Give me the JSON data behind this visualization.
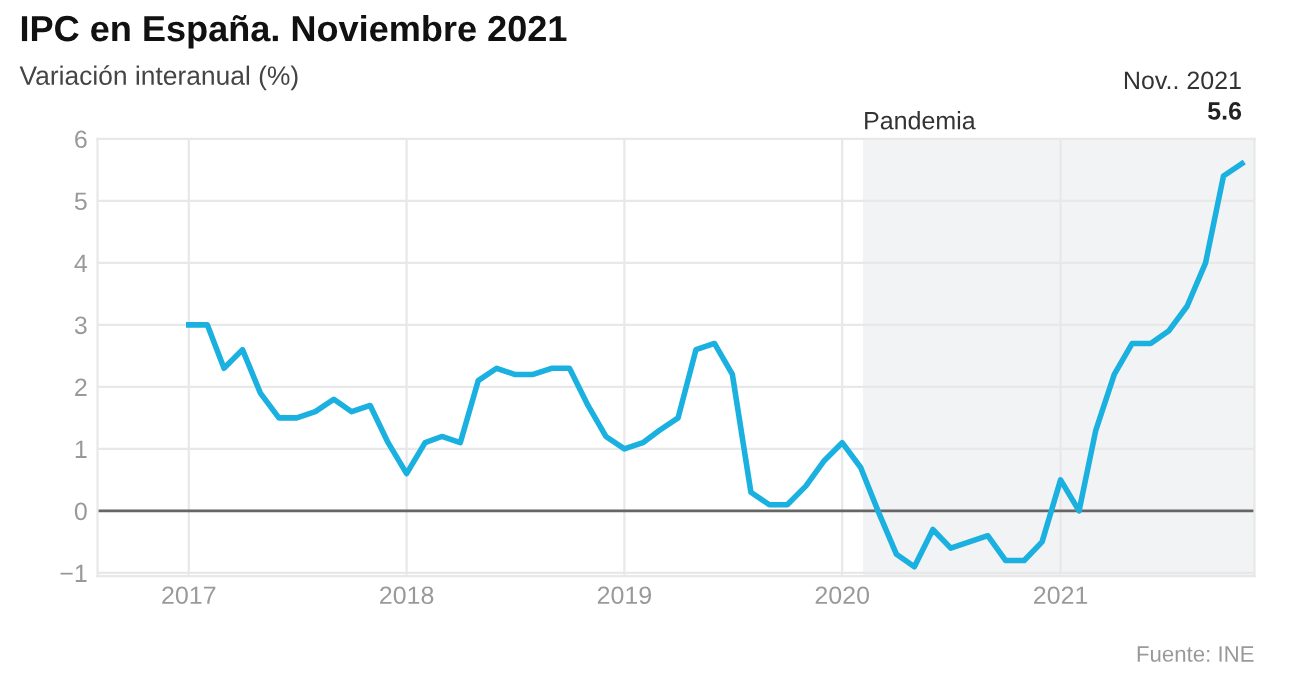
{
  "chart_data": {
    "type": "line",
    "title": "IPC en España. Noviembre 2021",
    "subtitle": "Variación interanual (%)",
    "x": [
      "2017-01",
      "2017-02",
      "2017-03",
      "2017-04",
      "2017-05",
      "2017-06",
      "2017-07",
      "2017-08",
      "2017-09",
      "2017-10",
      "2017-11",
      "2017-12",
      "2018-01",
      "2018-02",
      "2018-03",
      "2018-04",
      "2018-05",
      "2018-06",
      "2018-07",
      "2018-08",
      "2018-09",
      "2018-10",
      "2018-11",
      "2018-12",
      "2019-01",
      "2019-02",
      "2019-03",
      "2019-04",
      "2019-05",
      "2019-06",
      "2019-07",
      "2019-08",
      "2019-09",
      "2019-10",
      "2019-11",
      "2019-12",
      "2020-01",
      "2020-02",
      "2020-03",
      "2020-04",
      "2020-05",
      "2020-06",
      "2020-07",
      "2020-08",
      "2020-09",
      "2020-10",
      "2020-11",
      "2020-12",
      "2021-01",
      "2021-02",
      "2021-03",
      "2021-04",
      "2021-05",
      "2021-06",
      "2021-07",
      "2021-08",
      "2021-09",
      "2021-10",
      "2021-11"
    ],
    "series": [
      {
        "color": "#1ab0e0",
        "values": [
          3.0,
          3.0,
          2.3,
          2.6,
          1.9,
          1.5,
          1.5,
          1.6,
          1.8,
          1.6,
          1.7,
          1.1,
          0.6,
          1.1,
          1.2,
          1.1,
          2.1,
          2.3,
          2.2,
          2.2,
          2.3,
          2.3,
          1.7,
          1.2,
          1.0,
          1.1,
          1.3,
          1.5,
          2.6,
          2.7,
          2.2,
          0.3,
          0.1,
          0.1,
          0.4,
          0.8,
          1.1,
          0.7,
          0.0,
          -0.7,
          -0.9,
          -0.3,
          -0.6,
          -0.5,
          -0.4,
          -0.8,
          -0.8,
          -0.5,
          0.5,
          0.0,
          1.3,
          2.2,
          2.7,
          2.7,
          2.9,
          3.3,
          4.0,
          5.4,
          5.6
        ],
        "value_labels": [
          null,
          null,
          null,
          null,
          null,
          null,
          null,
          null,
          null,
          null,
          null,
          null,
          null,
          null,
          null,
          null,
          null,
          null,
          null,
          null,
          null,
          null,
          null,
          null,
          null,
          null,
          null,
          null,
          null,
          null,
          null,
          null,
          null,
          null,
          null,
          null,
          null,
          null,
          null,
          null,
          null,
          null,
          null,
          null,
          null,
          null,
          null,
          null,
          null,
          null,
          null,
          null,
          null,
          null,
          null,
          null,
          null,
          null,
          "5.6"
        ]
      }
    ],
    "xlim": [
      "2016-08-01",
      "2021-11-22"
    ],
    "xticks": [
      {
        "value": "2017-01-01",
        "label": "2017"
      },
      {
        "value": "2018-01-01",
        "label": "2018"
      },
      {
        "value": "2019-01-01",
        "label": "2019"
      },
      {
        "value": "2020-01-01",
        "label": "2020"
      },
      {
        "value": "2021-01-01",
        "label": "2021"
      }
    ],
    "ylim": [
      -1.05,
      6
    ],
    "yticks": [
      {
        "value": -1,
        "label": "−1"
      },
      0,
      1,
      2,
      3,
      4,
      5,
      6
    ],
    "grid": true,
    "marker": "none",
    "line_style": "solid",
    "ref_lines": [
      {
        "axis": "y",
        "value": 0,
        "color": "#666666"
      }
    ],
    "bands": [
      {
        "axis": "x",
        "from": "2020-02-05",
        "to": "2021-11-22",
        "label": "Pandemia",
        "color": "#f2f3f5"
      }
    ],
    "annotations": [
      {
        "text": "Nov.. 2021",
        "x": "2021-11",
        "y": 5.6
      },
      "Fuente: INE"
    ]
  }
}
